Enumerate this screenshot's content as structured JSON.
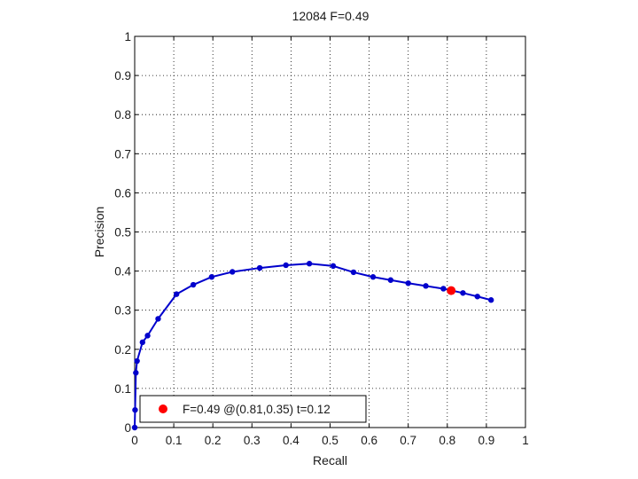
{
  "chart_data": {
    "type": "line",
    "title": "12084 F=0.49",
    "xlabel": "Recall",
    "ylabel": "Precision",
    "xlim": [
      0,
      1
    ],
    "ylim": [
      0,
      1
    ],
    "xticks": [
      "0",
      "0.1",
      "0.2",
      "0.3",
      "0.4",
      "0.5",
      "0.6",
      "0.7",
      "0.8",
      "0.9",
      "1"
    ],
    "yticks": [
      "0",
      "0.1",
      "0.2",
      "0.3",
      "0.4",
      "0.5",
      "0.6",
      "0.7",
      "0.8",
      "0.9",
      "1"
    ],
    "grid": true,
    "legend_position": "bottom-left",
    "series": [
      {
        "color": "#0000cc",
        "points": [
          [
            0.0,
            0.0
          ],
          [
            0.001,
            0.045
          ],
          [
            0.003,
            0.14
          ],
          [
            0.006,
            0.17
          ],
          [
            0.02,
            0.218
          ],
          [
            0.033,
            0.235
          ],
          [
            0.06,
            0.278
          ],
          [
            0.107,
            0.341
          ],
          [
            0.15,
            0.365
          ],
          [
            0.197,
            0.385
          ],
          [
            0.25,
            0.398
          ],
          [
            0.32,
            0.408
          ],
          [
            0.387,
            0.415
          ],
          [
            0.447,
            0.419
          ],
          [
            0.508,
            0.413
          ],
          [
            0.56,
            0.397
          ],
          [
            0.61,
            0.385
          ],
          [
            0.655,
            0.377
          ],
          [
            0.7,
            0.369
          ],
          [
            0.745,
            0.362
          ],
          [
            0.79,
            0.355
          ],
          [
            0.84,
            0.344
          ],
          [
            0.877,
            0.335
          ],
          [
            0.912,
            0.326
          ]
        ]
      },
      {
        "color": "#ff0000",
        "points": [
          [
            0.81,
            0.35
          ]
        ]
      }
    ],
    "legend": {
      "label": "F=0.49 @(0.81,0.35) t=0.12",
      "color": "#ff0000"
    }
  }
}
